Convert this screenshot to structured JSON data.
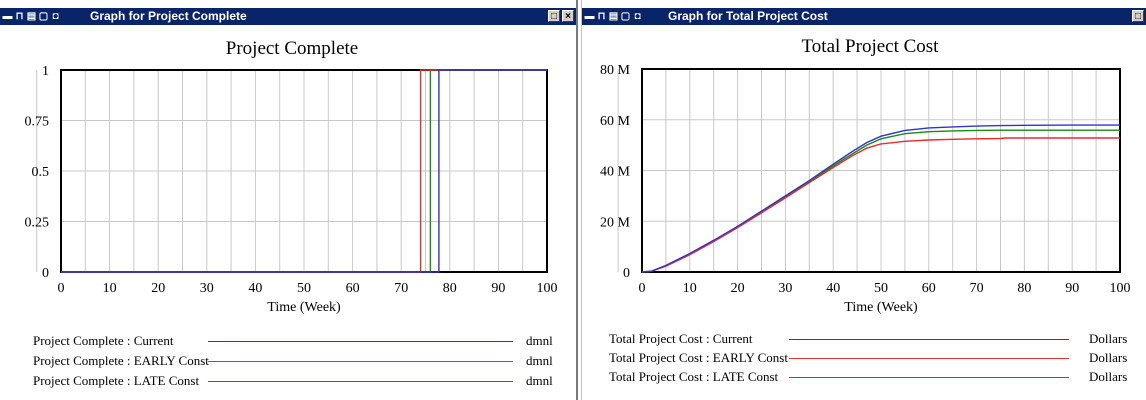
{
  "windows": [
    {
      "title": "Graph for Project Complete",
      "icons": [
        "minimize-system-icon",
        "lock-icon",
        "print-icon",
        "copy-icon",
        "save-icon"
      ],
      "buttons": {
        "restore": "□",
        "close": "×"
      },
      "chart_data": {
        "type": "line",
        "title": "Project Complete",
        "xlabel": "Time (Week)",
        "ylabel": "",
        "xlim": [
          0,
          100
        ],
        "ylim": [
          0,
          1
        ],
        "xticks": [
          0,
          10,
          20,
          30,
          40,
          50,
          60,
          70,
          80,
          90,
          100
        ],
        "yticks": [
          "0",
          "0.25",
          "0.5",
          "0.75",
          "1"
        ],
        "grid": true,
        "series": [
          {
            "name": "Project Complete : Current",
            "unit": "dmnl",
            "color": "#3333cc",
            "points": [
              [
                0,
                0
              ],
              [
                77.75,
                0
              ],
              [
                77.75,
                1
              ],
              [
                100,
                1
              ]
            ]
          },
          {
            "name": "Project Complete : EARLY Const",
            "unit": "dmnl",
            "color": "#e03030",
            "points": [
              [
                0,
                0
              ],
              [
                74,
                0
              ],
              [
                74,
                1
              ],
              [
                100,
                1
              ]
            ]
          },
          {
            "name": "Project Complete : LATE Const",
            "unit": "dmnl",
            "color": "#1a8a1a",
            "points": [
              [
                0,
                0
              ],
              [
                76,
                0
              ],
              [
                76,
                1
              ],
              [
                100,
                1
              ]
            ]
          }
        ]
      }
    },
    {
      "title": "Graph for Total Project Cost",
      "icons": [
        "minimize-system-icon",
        "lock-icon",
        "print-icon",
        "copy-icon",
        "save-icon"
      ],
      "buttons": {
        "restore": "□",
        "close": "×"
      },
      "chart_data": {
        "type": "line",
        "title": "Total Project Cost",
        "xlabel": "Time (Week)",
        "ylabel": "",
        "xlim": [
          0,
          100
        ],
        "ylim": [
          0,
          80
        ],
        "xticks": [
          0,
          10,
          20,
          30,
          40,
          50,
          60,
          70,
          80,
          90,
          100
        ],
        "yticks": [
          "0",
          "20 M",
          "40 M",
          "60 M",
          "80 M"
        ],
        "grid": true,
        "series": [
          {
            "name": "Total Project Cost : Current",
            "unit": "Dollars",
            "color": "#3333cc",
            "points": [
              [
                0,
                0
              ],
              [
                2,
                0.3
              ],
              [
                5,
                2.6
              ],
              [
                10,
                7.3
              ],
              [
                15,
                12.5
              ],
              [
                20,
                18
              ],
              [
                25,
                24
              ],
              [
                30,
                30
              ],
              [
                35,
                36
              ],
              [
                40,
                42.5
              ],
              [
                44,
                47.5
              ],
              [
                47,
                51
              ],
              [
                50,
                53.5
              ],
              [
                55,
                55.8
              ],
              [
                60,
                56.8
              ],
              [
                65,
                57.2
              ],
              [
                70,
                57.5
              ],
              [
                75,
                57.7
              ],
              [
                80,
                57.8
              ],
              [
                90,
                57.9
              ],
              [
                100,
                57.9
              ]
            ]
          },
          {
            "name": "Total Project Cost : EARLY Const",
            "unit": "Dollars",
            "color": "#e03030",
            "points": [
              [
                0,
                0
              ],
              [
                2,
                0.3
              ],
              [
                5,
                2.3
              ],
              [
                10,
                6.8
              ],
              [
                15,
                12
              ],
              [
                20,
                17.5
              ],
              [
                25,
                23.3
              ],
              [
                30,
                29.2
              ],
              [
                35,
                35.2
              ],
              [
                40,
                41.2
              ],
              [
                44,
                45.8
              ],
              [
                47,
                48.8
              ],
              [
                50,
                50.5
              ],
              [
                55,
                51.5
              ],
              [
                60,
                52
              ],
              [
                65,
                52.3
              ],
              [
                70,
                52.5
              ],
              [
                75,
                52.6
              ],
              [
                76,
                52.8
              ],
              [
                80,
                52.8
              ],
              [
                90,
                52.8
              ],
              [
                100,
                52.8
              ]
            ]
          },
          {
            "name": "Total Project Cost : LATE Const",
            "unit": "Dollars",
            "color": "#1a8a1a",
            "points": [
              [
                0,
                0
              ],
              [
                2,
                0.3
              ],
              [
                5,
                2.4
              ],
              [
                10,
                7
              ],
              [
                15,
                12.2
              ],
              [
                20,
                17.7
              ],
              [
                25,
                23.6
              ],
              [
                30,
                29.6
              ],
              [
                35,
                35.6
              ],
              [
                40,
                41.8
              ],
              [
                44,
                46.5
              ],
              [
                47,
                50
              ],
              [
                50,
                52.5
              ],
              [
                55,
                54.5
              ],
              [
                60,
                55.3
              ],
              [
                65,
                55.6
              ],
              [
                70,
                55.8
              ],
              [
                75,
                55.9
              ],
              [
                80,
                55.9
              ],
              [
                90,
                55.9
              ],
              [
                100,
                55.9
              ]
            ]
          }
        ]
      }
    }
  ]
}
